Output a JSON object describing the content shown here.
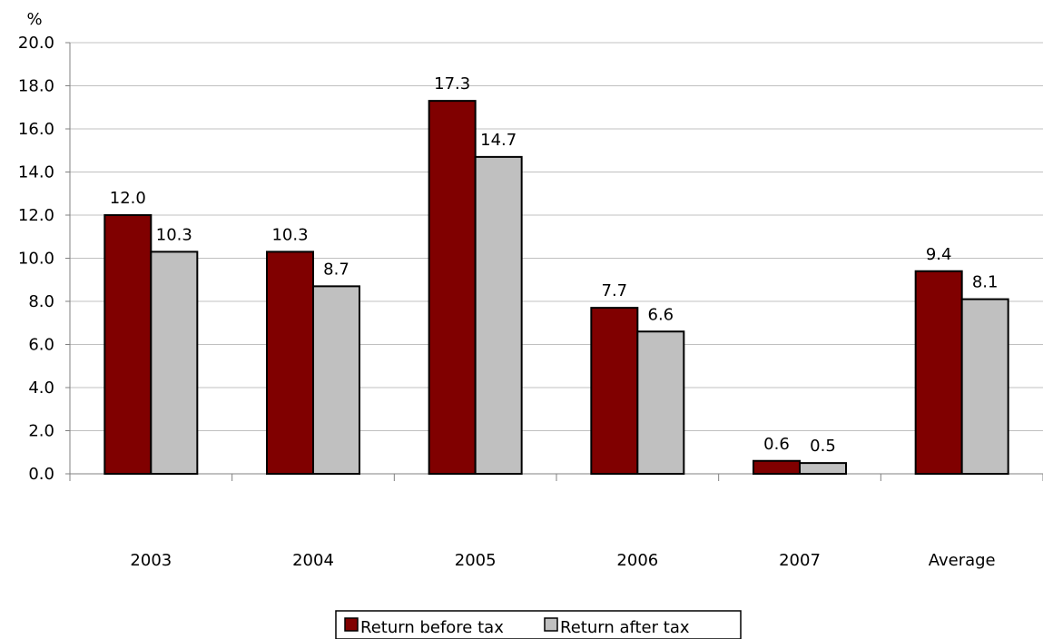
{
  "chart_data": {
    "type": "bar",
    "title": "",
    "unit_label": "%",
    "xlabel": "",
    "ylabel": "",
    "ylim": [
      0,
      20
    ],
    "ytick_step": 2,
    "ytick_labels": [
      "0.0",
      "2.0",
      "4.0",
      "6.0",
      "8.0",
      "10.0",
      "12.0",
      "14.0",
      "16.0",
      "18.0",
      "20.0"
    ],
    "categories": [
      "2003",
      "2004",
      "2005",
      "2006",
      "2007",
      "Average"
    ],
    "series": [
      {
        "name": "Return before tax",
        "color": "#800000",
        "values": [
          12.0,
          10.3,
          17.3,
          7.7,
          0.6,
          9.4
        ],
        "labels": [
          "12.0",
          "10.3",
          "17.3",
          "7.7",
          "0.6",
          "9.4"
        ]
      },
      {
        "name": "Return after tax",
        "color": "#c0c0c0",
        "values": [
          10.3,
          8.7,
          14.7,
          6.6,
          0.5,
          8.1
        ],
        "labels": [
          "10.3",
          "8.7",
          "14.7",
          "6.6",
          "0.5",
          "8.1"
        ]
      }
    ],
    "grid": true,
    "legend_position": "bottom"
  }
}
